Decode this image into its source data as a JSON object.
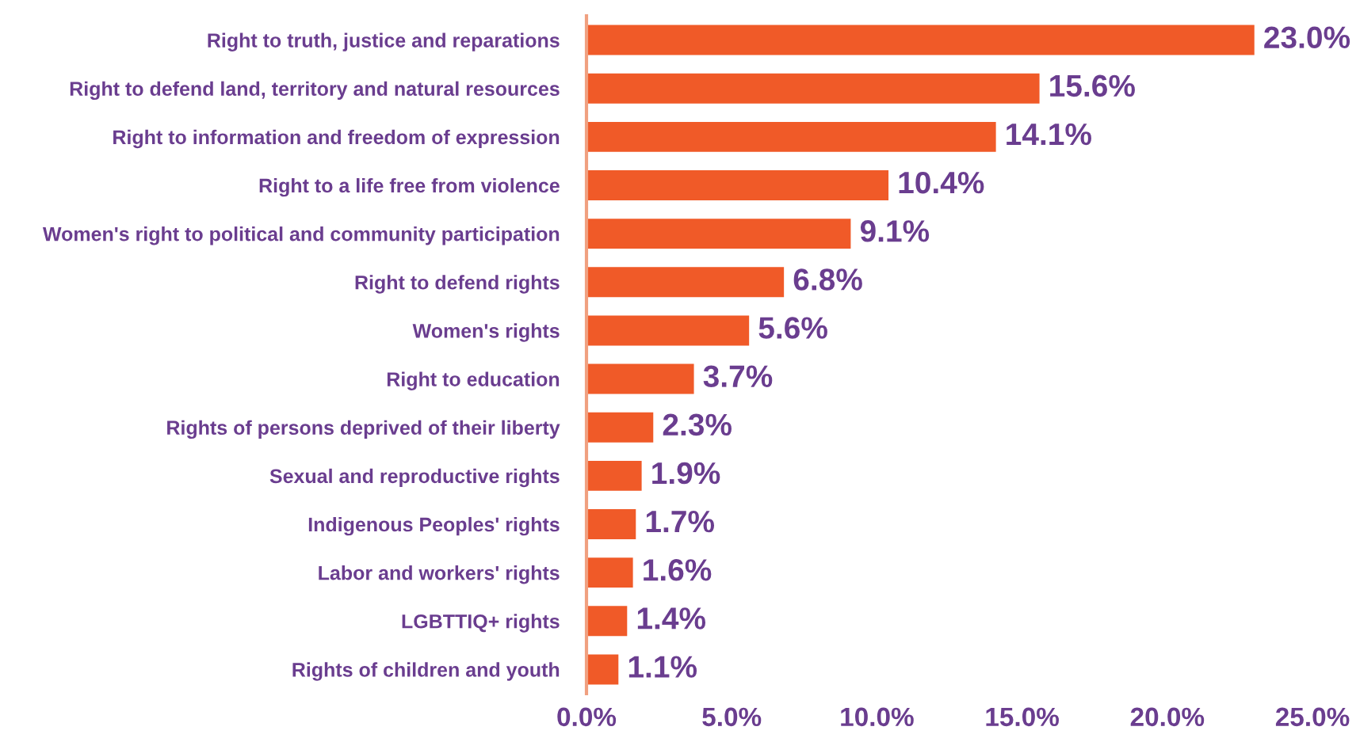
{
  "chart_data": {
    "type": "bar",
    "orientation": "horizontal",
    "categories": [
      "Right to truth, justice and reparations",
      "Right to defend land, territory and natural resources",
      "Right to information and freedom of expression",
      "Right to a life free from violence",
      "Women's right to political and community participation",
      "Right to defend rights",
      "Women's rights",
      "Right to education",
      "Rights of persons deprived of their liberty",
      "Sexual and reproductive rights",
      "Indigenous Peoples' rights",
      "Labor and workers' rights",
      "LGBTTIQ+ rights",
      "Rights of children and youth"
    ],
    "values": [
      23.0,
      15.6,
      14.1,
      10.4,
      9.1,
      6.8,
      5.6,
      3.7,
      2.3,
      1.9,
      1.7,
      1.6,
      1.4,
      1.1
    ],
    "value_labels": [
      "23.0%",
      "15.6%",
      "14.1%",
      "10.4%",
      "9.1%",
      "6.8%",
      "5.6%",
      "3.7%",
      "2.3%",
      "1.9%",
      "1.7%",
      "1.6%",
      "1.4%",
      "1.1%"
    ],
    "color": "#f05a28",
    "xlim": [
      0,
      25
    ],
    "xticks": [
      {
        "value": 0,
        "label": "0.0%"
      },
      {
        "value": 5,
        "label": "5.0%"
      },
      {
        "value": 10,
        "label": "10.0%"
      },
      {
        "value": 15,
        "label": "15.0%"
      },
      {
        "value": 20,
        "label": "20.0%"
      },
      {
        "value": 25,
        "label": "25.0%"
      }
    ],
    "grid": false,
    "legend": false
  }
}
